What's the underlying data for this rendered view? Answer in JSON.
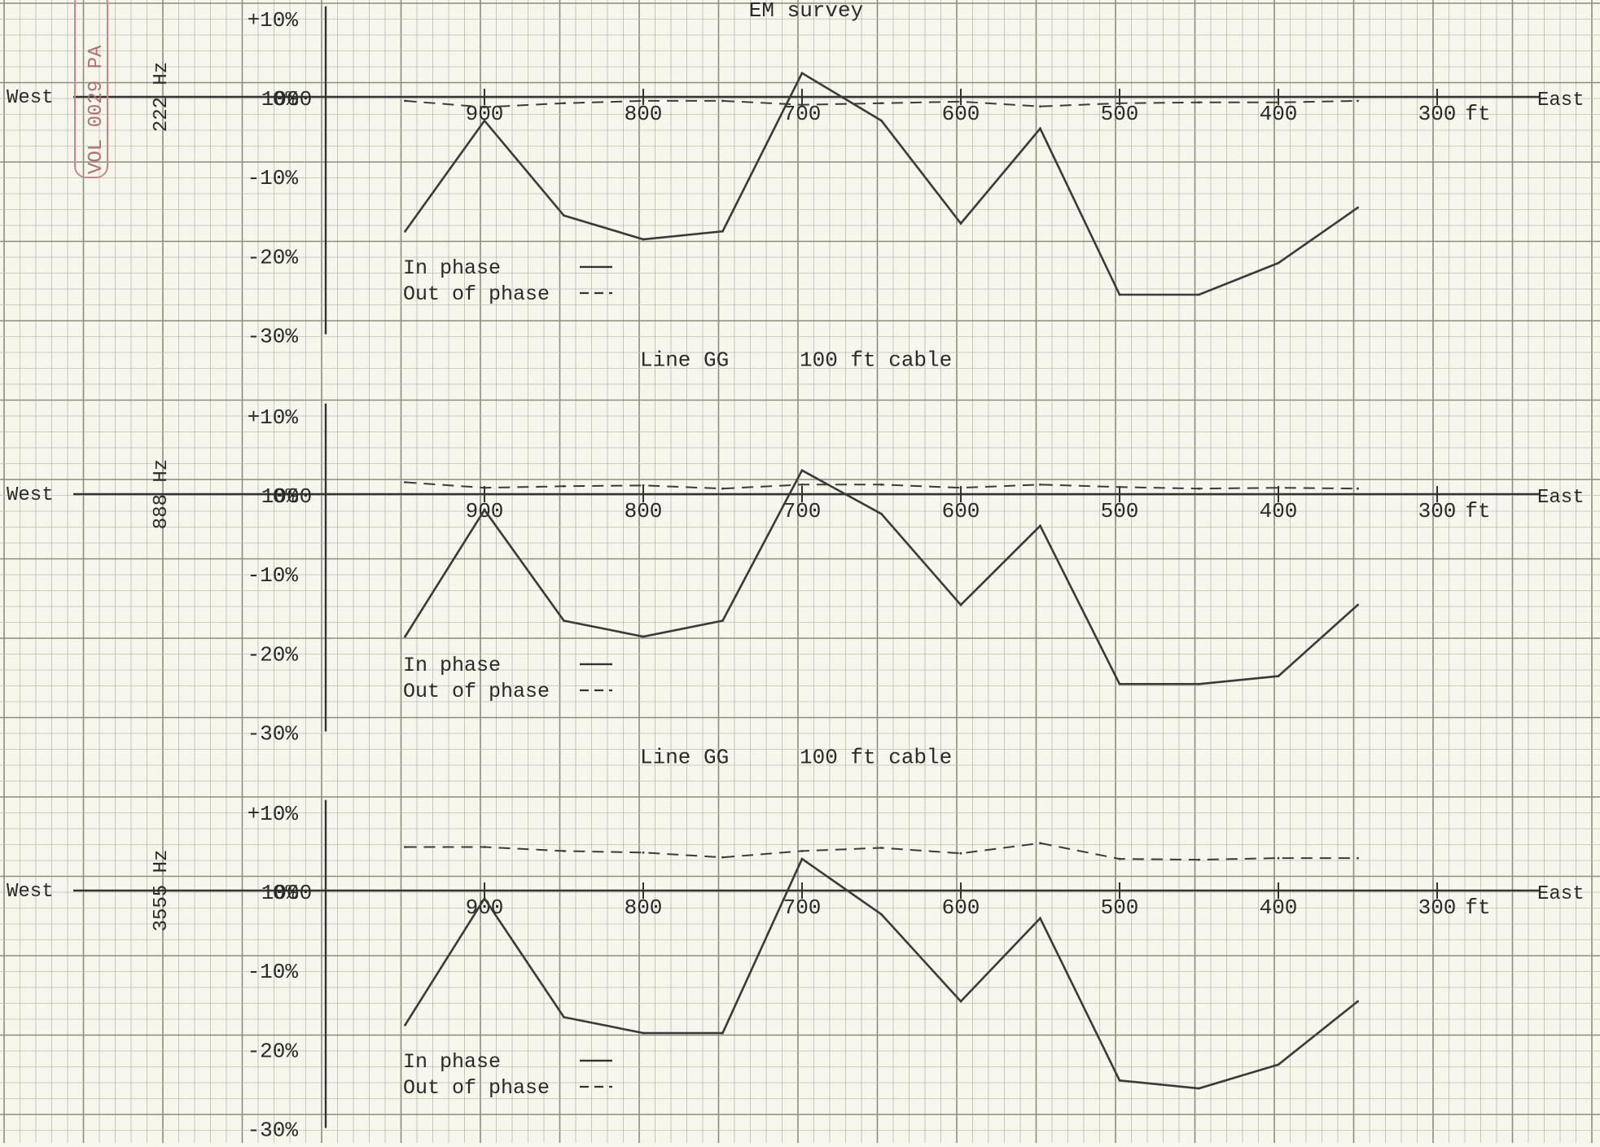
{
  "title": "EM survey",
  "stamp": "VOL 0029 PA",
  "west_label": "West",
  "east_label": "East",
  "x_unit": "ft",
  "x_ticks": [
    1000,
    900,
    800,
    700,
    600,
    500,
    400,
    300
  ],
  "y_ticks": [
    {
      "value": 10,
      "label": "+10%"
    },
    {
      "value": 0,
      "label": "0%"
    },
    {
      "value": -10,
      "label": "-10%"
    },
    {
      "value": -20,
      "label": "-20%"
    },
    {
      "value": -30,
      "label": "-30%"
    }
  ],
  "legend": {
    "in_phase": "In phase",
    "out_of_phase": "Out of phase"
  },
  "line_label": "Line GG",
  "cable_label": "100 ft cable",
  "chart_data": [
    {
      "type": "line",
      "frequency": "222 Hz",
      "xlim": [
        1000,
        300
      ],
      "ylim": [
        -30,
        10
      ],
      "x": [
        950,
        900,
        850,
        800,
        750,
        700,
        650,
        600,
        550,
        500,
        450,
        400,
        350
      ],
      "series": [
        {
          "name": "In phase",
          "style": "solid",
          "values": [
            -17,
            -3,
            -15,
            -18,
            -17,
            3,
            -3,
            -16,
            -4,
            -25,
            -25,
            -21,
            -14
          ]
        },
        {
          "name": "Out of phase",
          "style": "dashed",
          "values": [
            -0.5,
            -1.3,
            -0.8,
            -0.5,
            -0.5,
            -1,
            -0.8,
            -0.6,
            -1.2,
            -0.8,
            -0.7,
            -0.7,
            -0.5
          ]
        }
      ]
    },
    {
      "type": "line",
      "frequency": "888 Hz",
      "xlim": [
        1000,
        300
      ],
      "ylim": [
        -30,
        10
      ],
      "x": [
        950,
        900,
        850,
        800,
        750,
        700,
        650,
        600,
        550,
        500,
        450,
        400,
        350
      ],
      "series": [
        {
          "name": "In phase",
          "style": "solid",
          "values": [
            -18,
            -2,
            -16,
            -18,
            -16,
            3,
            -2.5,
            -14,
            -4,
            -24,
            -24,
            -23,
            -14
          ]
        },
        {
          "name": "Out of phase",
          "style": "dashed",
          "values": [
            1.5,
            0.8,
            1,
            1.1,
            0.7,
            1.2,
            1.2,
            0.8,
            1.2,
            0.9,
            0.7,
            0.8,
            0.7
          ]
        }
      ]
    },
    {
      "type": "line",
      "frequency": "3555 Hz",
      "xlim": [
        1000,
        300
      ],
      "ylim": [
        -30,
        10
      ],
      "x": [
        950,
        900,
        850,
        800,
        750,
        700,
        650,
        600,
        550,
        500,
        450,
        400,
        350
      ],
      "series": [
        {
          "name": "In phase",
          "style": "solid",
          "values": [
            -17,
            -1,
            -16,
            -18,
            -18,
            4,
            -3,
            -14,
            -3.5,
            -24,
            -25,
            -22,
            -14
          ]
        },
        {
          "name": "Out of phase",
          "style": "dashed",
          "values": [
            5.5,
            5.5,
            5,
            4.8,
            4.2,
            5,
            5.4,
            4.7,
            6,
            4,
            3.9,
            4.1,
            4.1
          ]
        }
      ]
    }
  ]
}
